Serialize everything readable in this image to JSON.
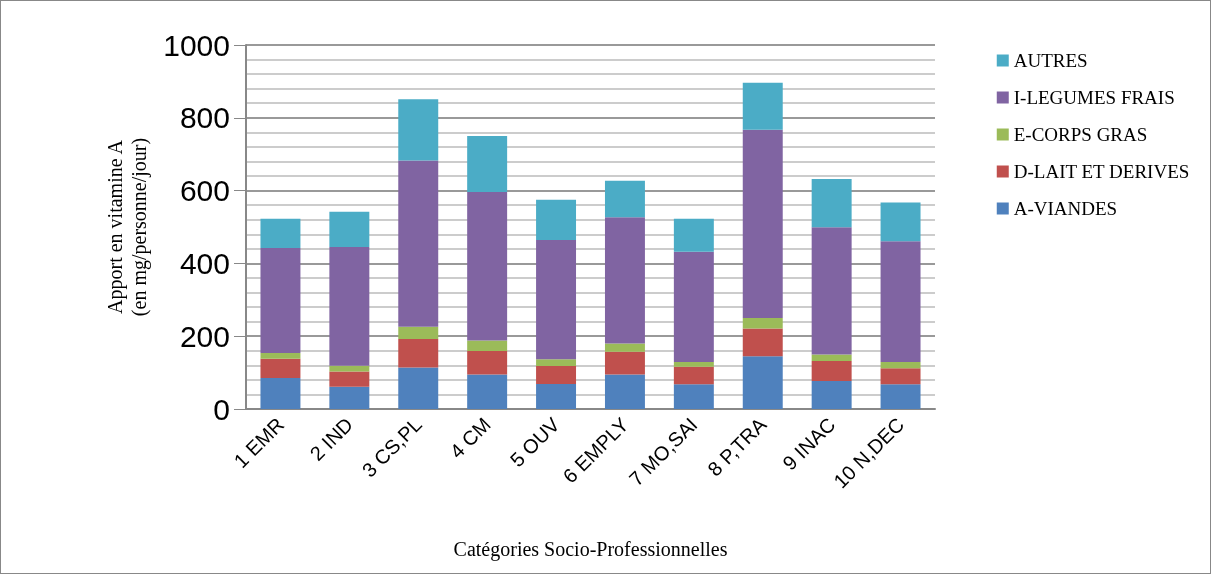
{
  "chart_data": {
    "type": "bar",
    "stacked": true,
    "xlabel": "Catégories Socio-Professionnelles",
    "ylabel": "Apport en vitamine A\n(en mg/personne/jour)",
    "categories": [
      "1 EMR",
      "2 IND",
      "3 CS,PL",
      "4 CM",
      "5 OUV",
      "6 EMPLY",
      "7 MO,SAI",
      "8 P,TRA",
      "9 INAC",
      "10 N,DEC"
    ],
    "series": [
      {
        "name": "A-VIANDES",
        "color": "#4f81bd",
        "values": [
          85,
          61,
          114,
          95,
          69,
          95,
          68,
          145,
          77,
          68
        ]
      },
      {
        "name": "D-LAIT ET DERIVES",
        "color": "#c0504d",
        "values": [
          53,
          42,
          78,
          64,
          49,
          62,
          48,
          76,
          55,
          44
        ]
      },
      {
        "name": "E-CORPS GRAS",
        "color": "#9bbb59",
        "values": [
          16,
          16,
          34,
          29,
          19,
          23,
          13,
          29,
          18,
          17
        ]
      },
      {
        "name": "I-LEGUMES FRAIS",
        "color": "#8064a2",
        "values": [
          288,
          326,
          457,
          408,
          327,
          347,
          303,
          517,
          349,
          332
        ]
      },
      {
        "name": "AUTRES",
        "color": "#4bacc6",
        "values": [
          81,
          97,
          168,
          154,
          111,
          100,
          91,
          129,
          133,
          106
        ]
      }
    ],
    "ylim": [
      0,
      1000
    ],
    "yticks": [
      0,
      200,
      400,
      600,
      800,
      1000
    ],
    "grid": true,
    "legend": "right"
  }
}
